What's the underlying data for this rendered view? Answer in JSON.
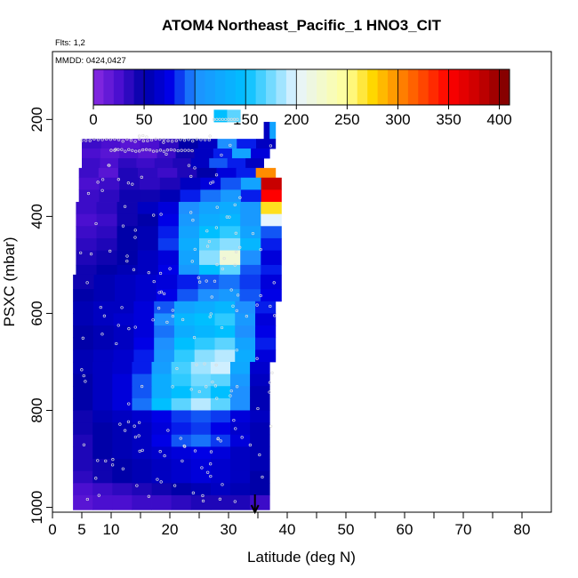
{
  "chart_data": {
    "type": "heatmap",
    "title": "ATOM4 Northeast_Pacific_1 HNO3_CIT",
    "annotations": [
      "Flts: 1,2",
      "MMDD: 0424,0427"
    ],
    "xlabel": "Latitude (deg N)",
    "ylabel": "PSXC (mbar)",
    "xlim": [
      0,
      85
    ],
    "ylim": [
      1010,
      60
    ],
    "x_ticks": [
      0,
      5,
      10,
      20,
      30,
      40,
      50,
      60,
      70,
      80
    ],
    "y_ticks": [
      200,
      400,
      600,
      800,
      1000
    ],
    "colorbar": {
      "ticks": [
        0,
        50,
        100,
        150,
        200,
        250,
        300,
        350,
        400
      ],
      "range": [
        0,
        410
      ],
      "stops": [
        {
          "v": 0,
          "c": "#8a2be2"
        },
        {
          "v": 25,
          "c": "#4b0fd0"
        },
        {
          "v": 50,
          "c": "#0000a8"
        },
        {
          "v": 75,
          "c": "#0000e6"
        },
        {
          "v": 100,
          "c": "#1e90ff"
        },
        {
          "v": 150,
          "c": "#00bfff"
        },
        {
          "v": 200,
          "c": "#e6f4ff"
        },
        {
          "v": 250,
          "c": "#ffff99"
        },
        {
          "v": 275,
          "c": "#ffd700"
        },
        {
          "v": 300,
          "c": "#ff8c00"
        },
        {
          "v": 350,
          "c": "#ff0000"
        },
        {
          "v": 380,
          "c": "#c80000"
        },
        {
          "v": 410,
          "c": "#7a0000"
        }
      ]
    },
    "rows": [
      {
        "p": [
          180,
          205
        ],
        "lat": [
          27.5,
          32
        ],
        "v": [
          150,
          170
        ]
      },
      {
        "p": [
          205,
          240
        ],
        "lat": [
          36,
          38
        ],
        "v": [
          60,
          120
        ]
      },
      {
        "p": [
          240,
          260
        ],
        "lat": [
          5,
          38
        ],
        "v": [
          30,
          25,
          20,
          25,
          35,
          50,
          60,
          100,
          80,
          60
        ]
      },
      {
        "p": [
          260,
          280
        ],
        "lat": [
          5,
          37
        ],
        "v": [
          25,
          20,
          25,
          20,
          30,
          45,
          60,
          80,
          120,
          70
        ]
      },
      {
        "p": [
          280,
          300
        ],
        "lat": [
          5,
          36
        ],
        "v": [
          30,
          25,
          35,
          30,
          35,
          40,
          60,
          90,
          80,
          60
        ]
      },
      {
        "p": [
          300,
          320
        ],
        "lat": [
          4.5,
          38
        ],
        "v": [
          30,
          20,
          40,
          35,
          30,
          40,
          50,
          70,
          80,
          300
        ]
      },
      {
        "p": [
          320,
          345
        ],
        "lat": [
          4.5,
          39
        ],
        "v": [
          25,
          30,
          40,
          35,
          40,
          60,
          70,
          90,
          120,
          380
        ]
      },
      {
        "p": [
          345,
          370
        ],
        "lat": [
          4.5,
          39
        ],
        "v": [
          30,
          35,
          45,
          45,
          55,
          80,
          95,
          110,
          80,
          350
        ]
      },
      {
        "p": [
          370,
          395
        ],
        "lat": [
          4,
          39
        ],
        "v": [
          30,
          35,
          45,
          60,
          70,
          100,
          120,
          130,
          110,
          270
        ]
      },
      {
        "p": [
          395,
          420
        ],
        "lat": [
          4,
          39
        ],
        "v": [
          25,
          30,
          45,
          50,
          75,
          110,
          130,
          140,
          110,
          200
        ]
      },
      {
        "p": [
          420,
          445
        ],
        "lat": [
          4,
          39
        ],
        "v": [
          30,
          35,
          50,
          55,
          80,
          120,
          150,
          160,
          120,
          90
        ]
      },
      {
        "p": [
          445,
          470
        ],
        "lat": [
          4,
          39
        ],
        "v": [
          35,
          40,
          50,
          55,
          85,
          130,
          170,
          180,
          140,
          80
        ]
      },
      {
        "p": [
          470,
          500
        ],
        "lat": [
          4,
          39
        ],
        "v": [
          40,
          45,
          50,
          60,
          70,
          120,
          180,
          220,
          100,
          70
        ]
      },
      {
        "p": [
          500,
          520
        ],
        "lat": [
          4,
          39
        ],
        "v": [
          45,
          50,
          55,
          60,
          75,
          110,
          150,
          170,
          90,
          80
        ]
      },
      {
        "p": [
          520,
          550
        ],
        "lat": [
          3.5,
          39
        ],
        "v": [
          45,
          55,
          60,
          65,
          70,
          80,
          90,
          95,
          85,
          70
        ]
      },
      {
        "p": [
          550,
          575
        ],
        "lat": [
          3.5,
          39
        ],
        "v": [
          50,
          55,
          60,
          65,
          75,
          90,
          100,
          110,
          90,
          75
        ]
      },
      {
        "p": [
          575,
          600
        ],
        "lat": [
          3.5,
          38
        ],
        "v": [
          55,
          60,
          60,
          70,
          90,
          120,
          130,
          140,
          100,
          80
        ]
      },
      {
        "p": [
          600,
          625
        ],
        "lat": [
          3.5,
          38
        ],
        "v": [
          55,
          60,
          65,
          70,
          100,
          140,
          150,
          160,
          110,
          70
        ]
      },
      {
        "p": [
          625,
          650
        ],
        "lat": [
          3.5,
          38
        ],
        "v": [
          50,
          55,
          60,
          70,
          95,
          130,
          140,
          150,
          100,
          75
        ]
      },
      {
        "p": [
          650,
          675
        ],
        "lat": [
          3.5,
          38
        ],
        "v": [
          50,
          55,
          60,
          75,
          100,
          150,
          160,
          170,
          120,
          80
        ]
      },
      {
        "p": [
          675,
          700
        ],
        "lat": [
          3.5,
          38
        ],
        "v": [
          55,
          60,
          65,
          80,
          110,
          160,
          180,
          190,
          130,
          70
        ]
      },
      {
        "p": [
          700,
          725
        ],
        "lat": [
          3.5,
          37
        ],
        "v": [
          55,
          60,
          65,
          80,
          115,
          165,
          185,
          195,
          125,
          65
        ]
      },
      {
        "p": [
          725,
          750
        ],
        "lat": [
          3.5,
          37
        ],
        "v": [
          50,
          60,
          70,
          90,
          130,
          160,
          175,
          170,
          110,
          60
        ]
      },
      {
        "p": [
          750,
          775
        ],
        "lat": [
          3.5,
          37
        ],
        "v": [
          50,
          60,
          70,
          90,
          130,
          150,
          165,
          150,
          100,
          55
        ]
      },
      {
        "p": [
          775,
          800
        ],
        "lat": [
          3.5,
          37
        ],
        "v": [
          50,
          60,
          70,
          95,
          150,
          170,
          190,
          170,
          100,
          55
        ]
      },
      {
        "p": [
          800,
          825
        ],
        "lat": [
          3.5,
          37
        ],
        "v": [
          45,
          55,
          60,
          65,
          75,
          85,
          90,
          85,
          70,
          60
        ]
      },
      {
        "p": [
          825,
          850
        ],
        "lat": [
          3.5,
          37
        ],
        "v": [
          45,
          50,
          55,
          60,
          70,
          80,
          85,
          75,
          65,
          55
        ]
      },
      {
        "p": [
          850,
          875
        ],
        "lat": [
          3.5,
          37
        ],
        "v": [
          40,
          50,
          55,
          60,
          75,
          90,
          95,
          85,
          70,
          55
        ]
      },
      {
        "p": [
          875,
          900
        ],
        "lat": [
          3.5,
          37
        ],
        "v": [
          40,
          50,
          55,
          60,
          65,
          70,
          75,
          70,
          60,
          55
        ]
      },
      {
        "p": [
          900,
          925
        ],
        "lat": [
          3.5,
          37
        ],
        "v": [
          40,
          45,
          50,
          55,
          60,
          65,
          70,
          65,
          60,
          55
        ]
      },
      {
        "p": [
          925,
          950
        ],
        "lat": [
          3.5,
          37
        ],
        "v": [
          35,
          45,
          50,
          55,
          60,
          65,
          70,
          65,
          60,
          50
        ]
      },
      {
        "p": [
          950,
          975
        ],
        "lat": [
          3.5,
          37
        ],
        "v": [
          25,
          30,
          35,
          40,
          45,
          50,
          55,
          60,
          55,
          50
        ]
      },
      {
        "p": [
          975,
          1005
        ],
        "lat": [
          3.5,
          37
        ],
        "v": [
          20,
          25,
          25,
          30,
          30,
          35,
          40,
          40,
          40,
          30
        ]
      }
    ],
    "markers": {
      "lat_range": [
        4.5,
        38
      ],
      "p_range": [
        230,
        990
      ],
      "count": 180,
      "color": "#dddddd"
    },
    "arrow_lat": 34.5,
    "colors": {
      "axis": "#000000",
      "background": "#ffffff"
    }
  }
}
